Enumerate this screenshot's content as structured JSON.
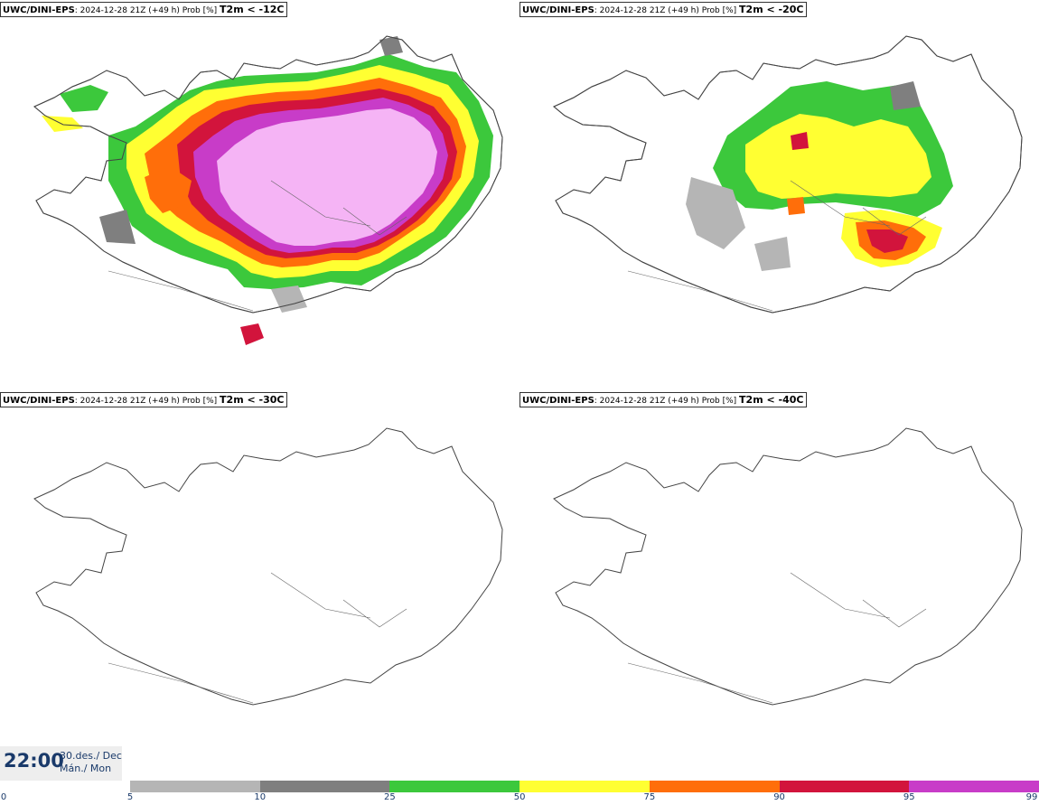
{
  "panels": [
    {
      "model": "UWC/DINI-EPS",
      "info": ": 2024-12-28 21Z (+49 h) Prob [%]",
      "variable": "T2m < -12C"
    },
    {
      "model": "UWC/DINI-EPS",
      "info": ": 2024-12-28 21Z (+49 h) Prob [%]",
      "variable": "T2m < -20C"
    },
    {
      "model": "UWC/DINI-EPS",
      "info": ": 2024-12-28 21Z (+49 h) Prob [%]",
      "variable": "T2m < -30C"
    },
    {
      "model": "UWC/DINI-EPS",
      "info": ": 2024-12-28 21Z (+49 h) Prob [%]",
      "variable": "T2m < -40C"
    }
  ],
  "valid_time": {
    "time": "22:00",
    "date_line1": "30.des./ Dec",
    "date_line2": "Mán./ Mon"
  },
  "legend": {
    "ticks": [
      "0",
      "5",
      "10",
      "25",
      "50",
      "75",
      "90",
      "95",
      "99"
    ],
    "colors": [
      "#ffffff",
      "#b5b5b5",
      "#7f7f7f",
      "#3cc83c",
      "#ffff32",
      "#ff6e0a",
      "#d2143c",
      "#c83cc8",
      "#f5b4f5"
    ]
  }
}
